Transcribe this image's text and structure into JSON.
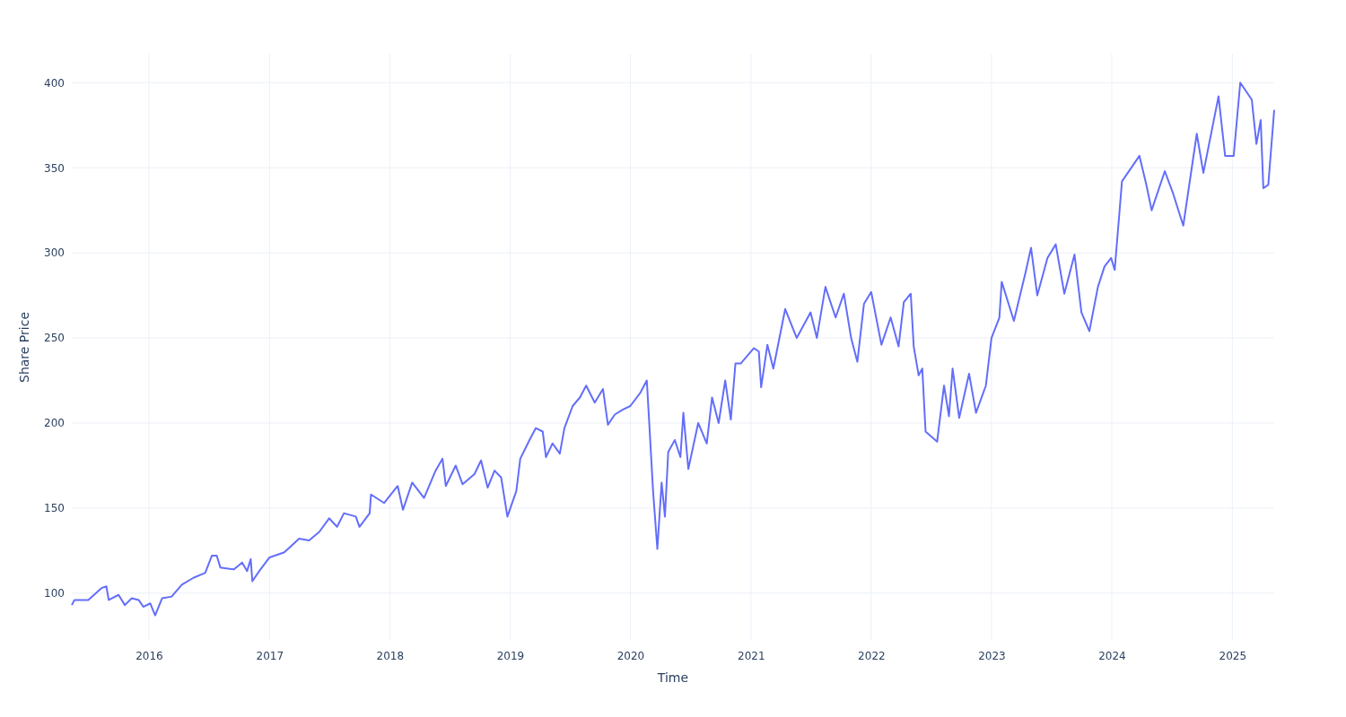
{
  "chart_data": {
    "type": "line",
    "xlabel": "Time",
    "ylabel": "Share Price",
    "grid": true,
    "line_style": "solid",
    "marker": "none",
    "xlim": [
      "2015-05-12",
      "2025-05-08"
    ],
    "ylim": [
      72,
      417
    ],
    "xticks": [
      {
        "value": "2016",
        "label": "2016"
      },
      {
        "value": "2017",
        "label": "2017"
      },
      {
        "value": "2018",
        "label": "2018"
      },
      {
        "value": "2019",
        "label": "2019"
      },
      {
        "value": "2020",
        "label": "2020"
      },
      {
        "value": "2021",
        "label": "2021"
      },
      {
        "value": "2022",
        "label": "2022"
      },
      {
        "value": "2023",
        "label": "2023"
      },
      {
        "value": "2024",
        "label": "2024"
      },
      {
        "value": "2025",
        "label": "2025"
      }
    ],
    "yticks": [
      100,
      150,
      200,
      250,
      300,
      350,
      400
    ],
    "x": [
      "2015-05-12",
      "2015-05-20",
      "2015-07-01",
      "2015-08-10",
      "2015-08-25",
      "2015-09-01",
      "2015-10-01",
      "2015-10-20",
      "2015-11-10",
      "2015-12-01",
      "2015-12-15",
      "2016-01-05",
      "2016-01-20",
      "2016-02-10",
      "2016-03-10",
      "2016-04-10",
      "2016-05-15",
      "2016-06-20",
      "2016-07-10",
      "2016-07-25",
      "2016-08-05",
      "2016-09-15",
      "2016-10-10",
      "2016-10-25",
      "2016-11-05",
      "2016-11-10",
      "2016-12-01",
      "2017-01-01",
      "2017-02-15",
      "2017-04-01",
      "2017-05-01",
      "2017-06-01",
      "2017-07-01",
      "2017-07-25",
      "2017-08-15",
      "2017-09-20",
      "2017-10-01",
      "2017-11-01",
      "2017-11-05",
      "2017-12-15",
      "2018-01-25",
      "2018-02-10",
      "2018-03-10",
      "2018-04-15",
      "2018-05-20",
      "2018-06-10",
      "2018-06-20",
      "2018-07-20",
      "2018-08-10",
      "2018-09-15",
      "2018-10-05",
      "2018-10-25",
      "2018-11-15",
      "2018-12-05",
      "2018-12-24",
      "2019-01-20",
      "2019-02-01",
      "2019-03-01",
      "2019-03-20",
      "2019-04-10",
      "2019-04-20",
      "2019-05-10",
      "2019-06-01",
      "2019-06-15",
      "2019-07-10",
      "2019-08-01",
      "2019-08-20",
      "2019-09-15",
      "2019-10-10",
      "2019-10-25",
      "2019-11-15",
      "2019-12-10",
      "2020-01-01",
      "2020-02-01",
      "2020-02-20",
      "2020-02-28",
      "2020-03-10",
      "2020-03-23",
      "2020-04-05",
      "2020-04-15",
      "2020-04-25",
      "2020-05-15",
      "2020-06-01",
      "2020-06-10",
      "2020-06-25",
      "2020-07-25",
      "2020-08-20",
      "2020-09-05",
      "2020-09-25",
      "2020-10-15",
      "2020-11-01",
      "2020-11-15",
      "2020-12-01",
      "2021-01-10",
      "2021-01-25",
      "2021-02-01",
      "2021-02-20",
      "2021-03-10",
      "2021-04-15",
      "2021-05-20",
      "2021-07-01",
      "2021-07-20",
      "2021-08-15",
      "2021-09-15",
      "2021-10-10",
      "2021-11-01",
      "2021-11-20",
      "2021-12-10",
      "2022-01-01",
      "2022-02-01",
      "2022-03-01",
      "2022-03-25",
      "2022-04-10",
      "2022-05-01",
      "2022-05-10",
      "2022-05-25",
      "2022-06-05",
      "2022-06-15",
      "2022-07-20",
      "2022-08-10",
      "2022-08-25",
      "2022-09-05",
      "2022-09-25",
      "2022-10-25",
      "2022-11-15",
      "2022-12-15",
      "2023-01-01",
      "2023-01-25",
      "2023-02-01",
      "2023-03-10",
      "2023-04-15",
      "2023-05-01",
      "2023-05-20",
      "2023-06-20",
      "2023-07-15",
      "2023-08-10",
      "2023-09-10",
      "2023-10-01",
      "2023-10-25",
      "2023-11-20",
      "2023-12-10",
      "2023-12-30",
      "2024-01-10",
      "2024-02-01",
      "2024-03-25",
      "2024-04-15",
      "2024-05-01",
      "2024-06-10",
      "2024-07-05",
      "2024-08-05",
      "2024-09-15",
      "2024-10-05",
      "2024-11-20",
      "2024-12-10",
      "2025-01-05",
      "2025-01-25",
      "2025-03-01",
      "2025-03-15",
      "2025-03-28",
      "2025-04-05",
      "2025-04-20",
      "2025-05-08"
    ],
    "series": [
      {
        "color": "#636efa",
        "values": [
          93,
          96,
          96,
          103,
          104,
          96,
          99,
          93,
          97,
          96,
          92,
          94,
          87,
          97,
          98,
          105,
          109,
          112,
          122,
          122,
          115,
          114,
          118,
          113,
          120,
          107,
          113,
          121,
          124,
          132,
          131,
          136,
          144,
          139,
          147,
          145,
          139,
          147,
          158,
          153,
          163,
          149,
          165,
          156,
          172,
          179,
          163,
          175,
          164,
          170,
          178,
          162,
          172,
          168,
          145,
          160,
          179,
          190,
          197,
          195,
          180,
          188,
          182,
          197,
          210,
          215,
          222,
          212,
          220,
          199,
          205,
          208,
          210,
          218,
          225,
          198,
          160,
          126,
          165,
          145,
          183,
          190,
          180,
          206,
          173,
          200,
          188,
          215,
          200,
          225,
          202,
          235,
          235,
          244,
          242,
          221,
          246,
          232,
          267,
          250,
          265,
          250,
          280,
          262,
          276,
          250,
          236,
          270,
          277,
          246,
          262,
          245,
          271,
          276,
          245,
          228,
          232,
          195,
          189,
          222,
          204,
          232,
          203,
          229,
          206,
          222,
          250,
          262,
          283,
          260,
          289,
          303,
          275,
          297,
          305,
          276,
          299,
          265,
          254,
          280,
          292,
          297,
          290,
          342,
          357,
          340,
          325,
          348,
          335,
          316,
          370,
          347,
          392,
          357,
          357,
          400,
          390,
          364,
          378,
          338,
          340,
          384
        ]
      }
    ]
  }
}
